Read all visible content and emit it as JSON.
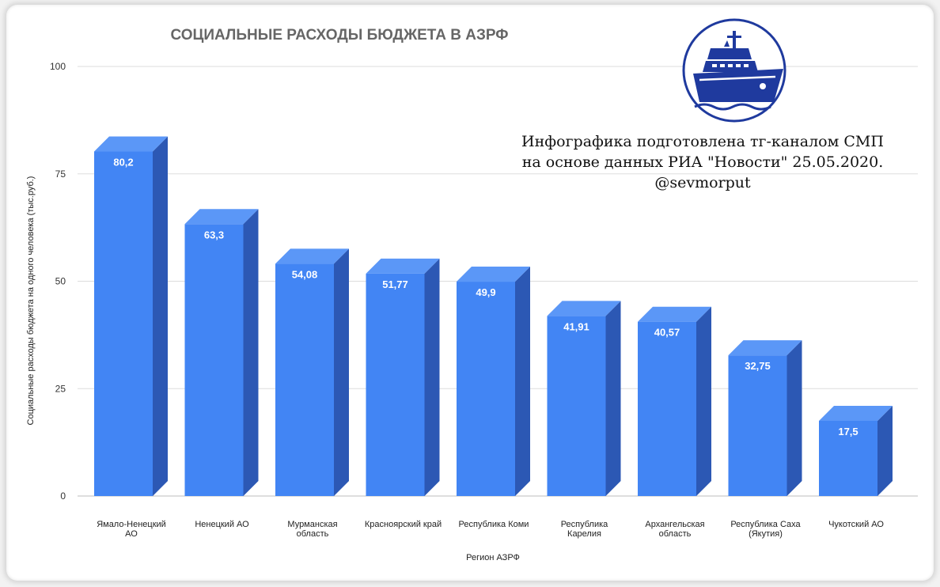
{
  "chart_data": {
    "type": "bar",
    "title": "СОЦИАЛЬНЫЕ РАСХОДЫ БЮДЖЕТА В АЗРФ",
    "xlabel": "Регион АЗРФ",
    "ylabel": "Социальные расходы бюджета на одного человека (тыс.руб.)",
    "ylim": [
      0,
      100
    ],
    "yticks": [
      0,
      25,
      50,
      75,
      100
    ],
    "grid": true,
    "bar_color": "#4285f4",
    "bar_side_color": "#2c58b4",
    "bar_top_color": "#5b97f7",
    "categories": [
      [
        "Ямало-Ненецкий",
        "АО"
      ],
      [
        "Ненецкий АО"
      ],
      [
        "Мурманская",
        "область"
      ],
      [
        "Красноярский край"
      ],
      [
        "Республика Коми"
      ],
      [
        "Республика",
        "Карелия"
      ],
      [
        "Архангельская",
        "область"
      ],
      [
        "Республика Саха",
        "(Якутия)"
      ],
      [
        "Чукотский АО"
      ]
    ],
    "values": [
      80.2,
      63.3,
      54.08,
      51.77,
      49.9,
      41.91,
      40.57,
      32.75,
      17.5
    ],
    "data_labels": [
      "80,2",
      "63,3",
      "54,08",
      "51,77",
      "49,9",
      "41,91",
      "40,57",
      "32,75",
      "17,5"
    ]
  },
  "annotation": {
    "lines": [
      "Инфографика подготовлена тг-каналом СМП",
      "на основе данных РИА \"Новости\" 25.05.2020.",
      "@sevmorput"
    ]
  },
  "logo": {
    "icon": "icebreaker-ship-logo",
    "color": "#1f3a9e"
  }
}
